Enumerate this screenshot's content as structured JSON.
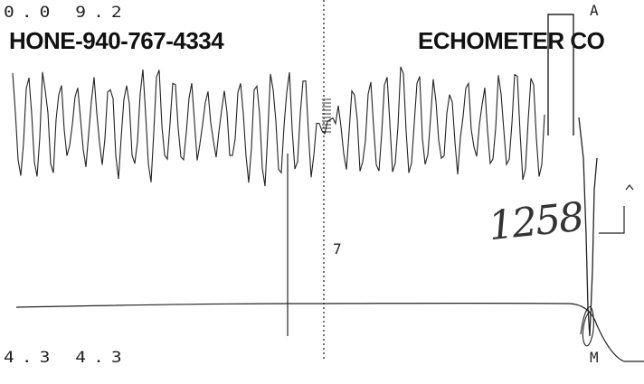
{
  "readout_top": "0.0  9.2",
  "readout_bottom": "4.3  4.3",
  "phone_banner": "HONE-940-767-4334",
  "company_banner": "ECHOMETER CO",
  "marker_a": "A",
  "marker_m": "M",
  "marker_mid": "7",
  "handwritten_note": "1258",
  "colors": {
    "trace": "#222222",
    "paper": "#ffffff"
  }
}
